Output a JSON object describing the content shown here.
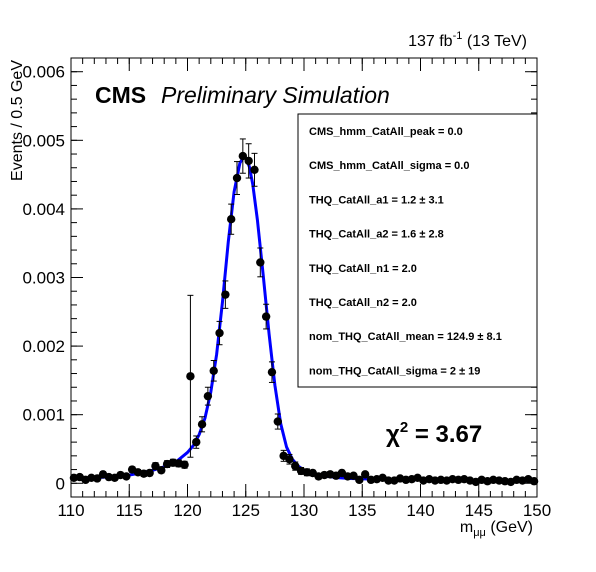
{
  "chart_data": {
    "type": "scatter",
    "title": "",
    "xlabel": "m_μμ (GeV)",
    "xlabel_main": "m",
    "xlabel_sub": "μμ",
    "xlabel_unit": "(GeV)",
    "ylabel": "Events / 0.5 GeV",
    "xlim": [
      110,
      150
    ],
    "ylim": [
      -0.0002,
      0.0062
    ],
    "x_ticks": [
      110,
      115,
      120,
      125,
      130,
      135,
      140,
      145,
      150
    ],
    "y_ticks": [
      0,
      0.001,
      0.002,
      0.003,
      0.004,
      0.005,
      0.006
    ],
    "y_tick_labels": [
      "0",
      "0.001",
      "0.002",
      "0.003",
      "0.004",
      "0.005",
      "0.006"
    ],
    "grid": false,
    "lumi": {
      "value": "137 fb",
      "exp": "-1",
      "energy": "(13 TeV)"
    },
    "cms_label": "CMS",
    "cms_extra": "Preliminary Simulation",
    "chi2": {
      "symbol": "χ",
      "exp": "2",
      "value": "= 3.67"
    },
    "fit_params": [
      "CMS_hmm_CatAll_peak =  0.0",
      "CMS_hmm_CatAll_sigma =  0.0",
      "THQ_CatAll_a1 =  1.2 ± 3.1",
      "THQ_CatAll_a2 =  1.6 ± 2.8",
      "THQ_CatAll_n1 =  2.0",
      "THQ_CatAll_n2 =  2.0",
      "nom_THQ_CatAll_mean =  124.9 ± 8.1",
      "nom_THQ_CatAll_sigma =  2 ± 19"
    ],
    "series": [
      {
        "kind": "points",
        "color": "#000000",
        "x": [
          110.25,
          110.75,
          111.25,
          111.75,
          112.25,
          112.75,
          113.25,
          113.75,
          114.25,
          114.75,
          115.25,
          115.75,
          116.25,
          116.75,
          117.25,
          117.75,
          118.25,
          118.75,
          119.25,
          119.75,
          120.25,
          120.75,
          121.25,
          121.75,
          122.25,
          122.75,
          123.25,
          123.75,
          124.25,
          124.75,
          125.25,
          125.75,
          126.25,
          126.75,
          127.25,
          127.75,
          128.25,
          128.75,
          129.25,
          129.75,
          130.25,
          130.75,
          131.25,
          131.75,
          132.25,
          132.75,
          133.25,
          133.75,
          134.25,
          134.75,
          135.25,
          135.75,
          136.25,
          136.75,
          137.25,
          137.75,
          138.25,
          138.75,
          139.25,
          139.75,
          140.25,
          140.75,
          141.25,
          141.75,
          142.25,
          142.75,
          143.25,
          143.75,
          144.25,
          144.75,
          145.25,
          145.75,
          146.25,
          146.75,
          147.25,
          147.75,
          148.25,
          148.75,
          149.25,
          149.75
        ],
        "y": [
          8e-05,
          9e-05,
          5e-05,
          8e-05,
          7e-05,
          0.00013,
          9e-05,
          8e-05,
          0.00012,
          0.0001,
          0.0002,
          0.00016,
          0.00014,
          0.00015,
          0.00025,
          0.00019,
          0.00028,
          0.0003,
          0.00029,
          0.00027,
          0.00156,
          0.0006,
          0.00086,
          0.00127,
          0.00164,
          0.00219,
          0.00275,
          0.00385,
          0.00445,
          0.00477,
          0.0047,
          0.00457,
          0.00322,
          0.00243,
          0.00162,
          0.0009,
          0.0004,
          0.00035,
          0.00025,
          0.00018,
          0.00016,
          0.00015,
          0.0001,
          0.00012,
          0.00013,
          0.00011,
          0.00015,
          0.0001,
          0.00011,
          5e-05,
          0.00013,
          5e-05,
          6e-05,
          8e-05,
          4e-05,
          4e-05,
          7e-05,
          5e-05,
          6e-05,
          8e-05,
          4e-05,
          6e-05,
          4e-05,
          5e-05,
          4e-05,
          6e-05,
          5e-05,
          6e-05,
          4e-05,
          2e-05,
          5e-05,
          3e-05,
          5e-05,
          4e-05,
          3e-05,
          2e-05,
          5e-05,
          4e-05,
          6e-05,
          3e-05
        ],
        "yerr": [
          3e-05,
          3e-05,
          3e-05,
          3e-05,
          3e-05,
          4e-05,
          3e-05,
          3e-05,
          4e-05,
          3e-05,
          4e-05,
          4e-05,
          4e-05,
          4e-05,
          5e-05,
          4e-05,
          5e-05,
          5e-05,
          5e-05,
          5e-05,
          0.00118,
          9e-05,
          0.00011,
          0.00013,
          0.00015,
          0.00017,
          0.0002,
          0.00022,
          0.00024,
          0.00025,
          0.00025,
          0.00024,
          0.00021,
          0.00018,
          0.00015,
          0.00011,
          8e-05,
          7e-05,
          6e-05,
          5e-05,
          5e-05,
          4e-05,
          4e-05,
          4e-05,
          4e-05,
          4e-05,
          4e-05,
          3e-05,
          3e-05,
          3e-05,
          3e-05,
          3e-05,
          3e-05,
          3e-05,
          3e-05,
          3e-05,
          3e-05,
          3e-05,
          3e-05,
          3e-05,
          3e-05,
          3e-05,
          3e-05,
          3e-05,
          3e-05,
          3e-05,
          3e-05,
          3e-05,
          3e-05,
          3e-05,
          3e-05,
          3e-05,
          3e-05,
          3e-05,
          3e-05,
          3e-05,
          3e-05,
          3e-05,
          3e-05,
          3e-05
        ]
      },
      {
        "kind": "fit-line",
        "color": "#0000ff",
        "x": [
          110,
          112,
          114,
          115,
          116,
          117,
          118,
          119,
          120,
          120.5,
          121,
          121.5,
          122,
          122.5,
          123,
          123.5,
          124,
          124.5,
          124.8,
          125,
          125.3,
          125.6,
          126,
          126.5,
          127,
          127.5,
          128,
          128.5,
          129,
          129.5,
          130,
          131,
          132,
          133,
          134,
          136,
          140,
          145,
          150
        ],
        "y": [
          6e-05,
          8e-05,
          0.0001,
          0.00012,
          0.00015,
          0.00019,
          0.00024,
          0.00031,
          0.00045,
          0.00055,
          0.00071,
          0.00095,
          0.00133,
          0.00188,
          0.00264,
          0.00352,
          0.00425,
          0.00467,
          0.00475,
          0.00474,
          0.00462,
          0.00436,
          0.00384,
          0.00303,
          0.00218,
          0.00143,
          0.00087,
          0.00053,
          0.00035,
          0.00025,
          0.00019,
          0.00013,
          0.0001,
          8e-05,
          7e-05,
          6e-05,
          5e-05,
          4e-05,
          3e-05
        ]
      }
    ]
  }
}
